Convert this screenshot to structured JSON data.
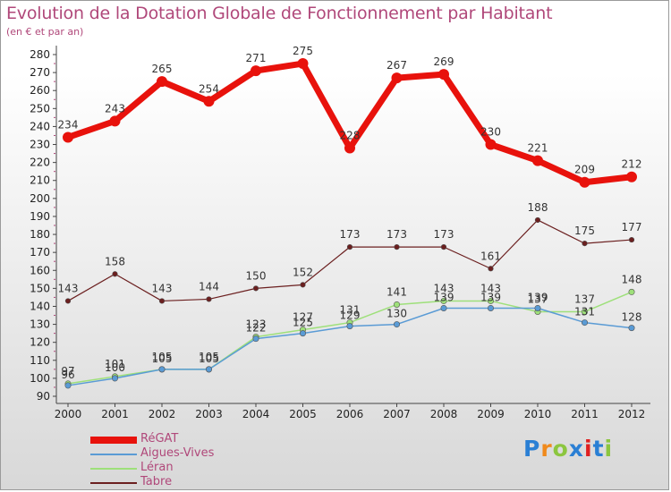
{
  "title": "Evolution de la Dotation Globale de Fonctionnement par Habitant",
  "subtitle": "(en € et par an)",
  "brand": {
    "letters": [
      "P",
      "r",
      "o",
      "x",
      "i",
      "t",
      "i"
    ],
    "colors": [
      "#2a7fd4",
      "#f08a1c",
      "#8cc63f",
      "#2a7fd4",
      "#e02020",
      "#2a7fd4",
      "#8cc63f"
    ]
  },
  "chart_data": {
    "type": "line",
    "title": "Evolution de la Dotation Globale de Fonctionnement par Habitant",
    "subtitle": "(en € et par an)",
    "xlabel": "",
    "ylabel": "",
    "ylim": [
      90,
      280
    ],
    "yticks": [
      90,
      100,
      110,
      120,
      130,
      140,
      150,
      160,
      170,
      180,
      190,
      200,
      210,
      220,
      230,
      240,
      250,
      260,
      270,
      280
    ],
    "x": [
      "2000",
      "2001",
      "2002",
      "2003",
      "2004",
      "2005",
      "2006",
      "2007",
      "2008",
      "2009",
      "2010",
      "2011",
      "2012"
    ],
    "grid": false,
    "legend_position": "bottom-left",
    "series": [
      {
        "name": "RéGAT",
        "color": "#e8120c",
        "values": [
          234,
          243,
          265,
          254,
          271,
          275,
          228,
          267,
          269,
          230,
          221,
          209,
          212
        ]
      },
      {
        "name": "Aigues-Vives",
        "color": "#5a9bd5",
        "values": [
          96,
          100,
          105,
          105,
          122,
          125,
          129,
          130,
          139,
          139,
          139,
          131,
          128
        ]
      },
      {
        "name": "Léran",
        "color": "#9ee07a",
        "values": [
          97,
          101,
          105,
          105,
          123,
          127,
          131,
          141,
          143,
          143,
          137,
          137,
          148
        ]
      },
      {
        "name": "Tabre",
        "color": "#6b1f1f",
        "values": [
          143,
          158,
          143,
          144,
          150,
          152,
          173,
          173,
          173,
          161,
          188,
          175,
          177
        ]
      }
    ]
  }
}
